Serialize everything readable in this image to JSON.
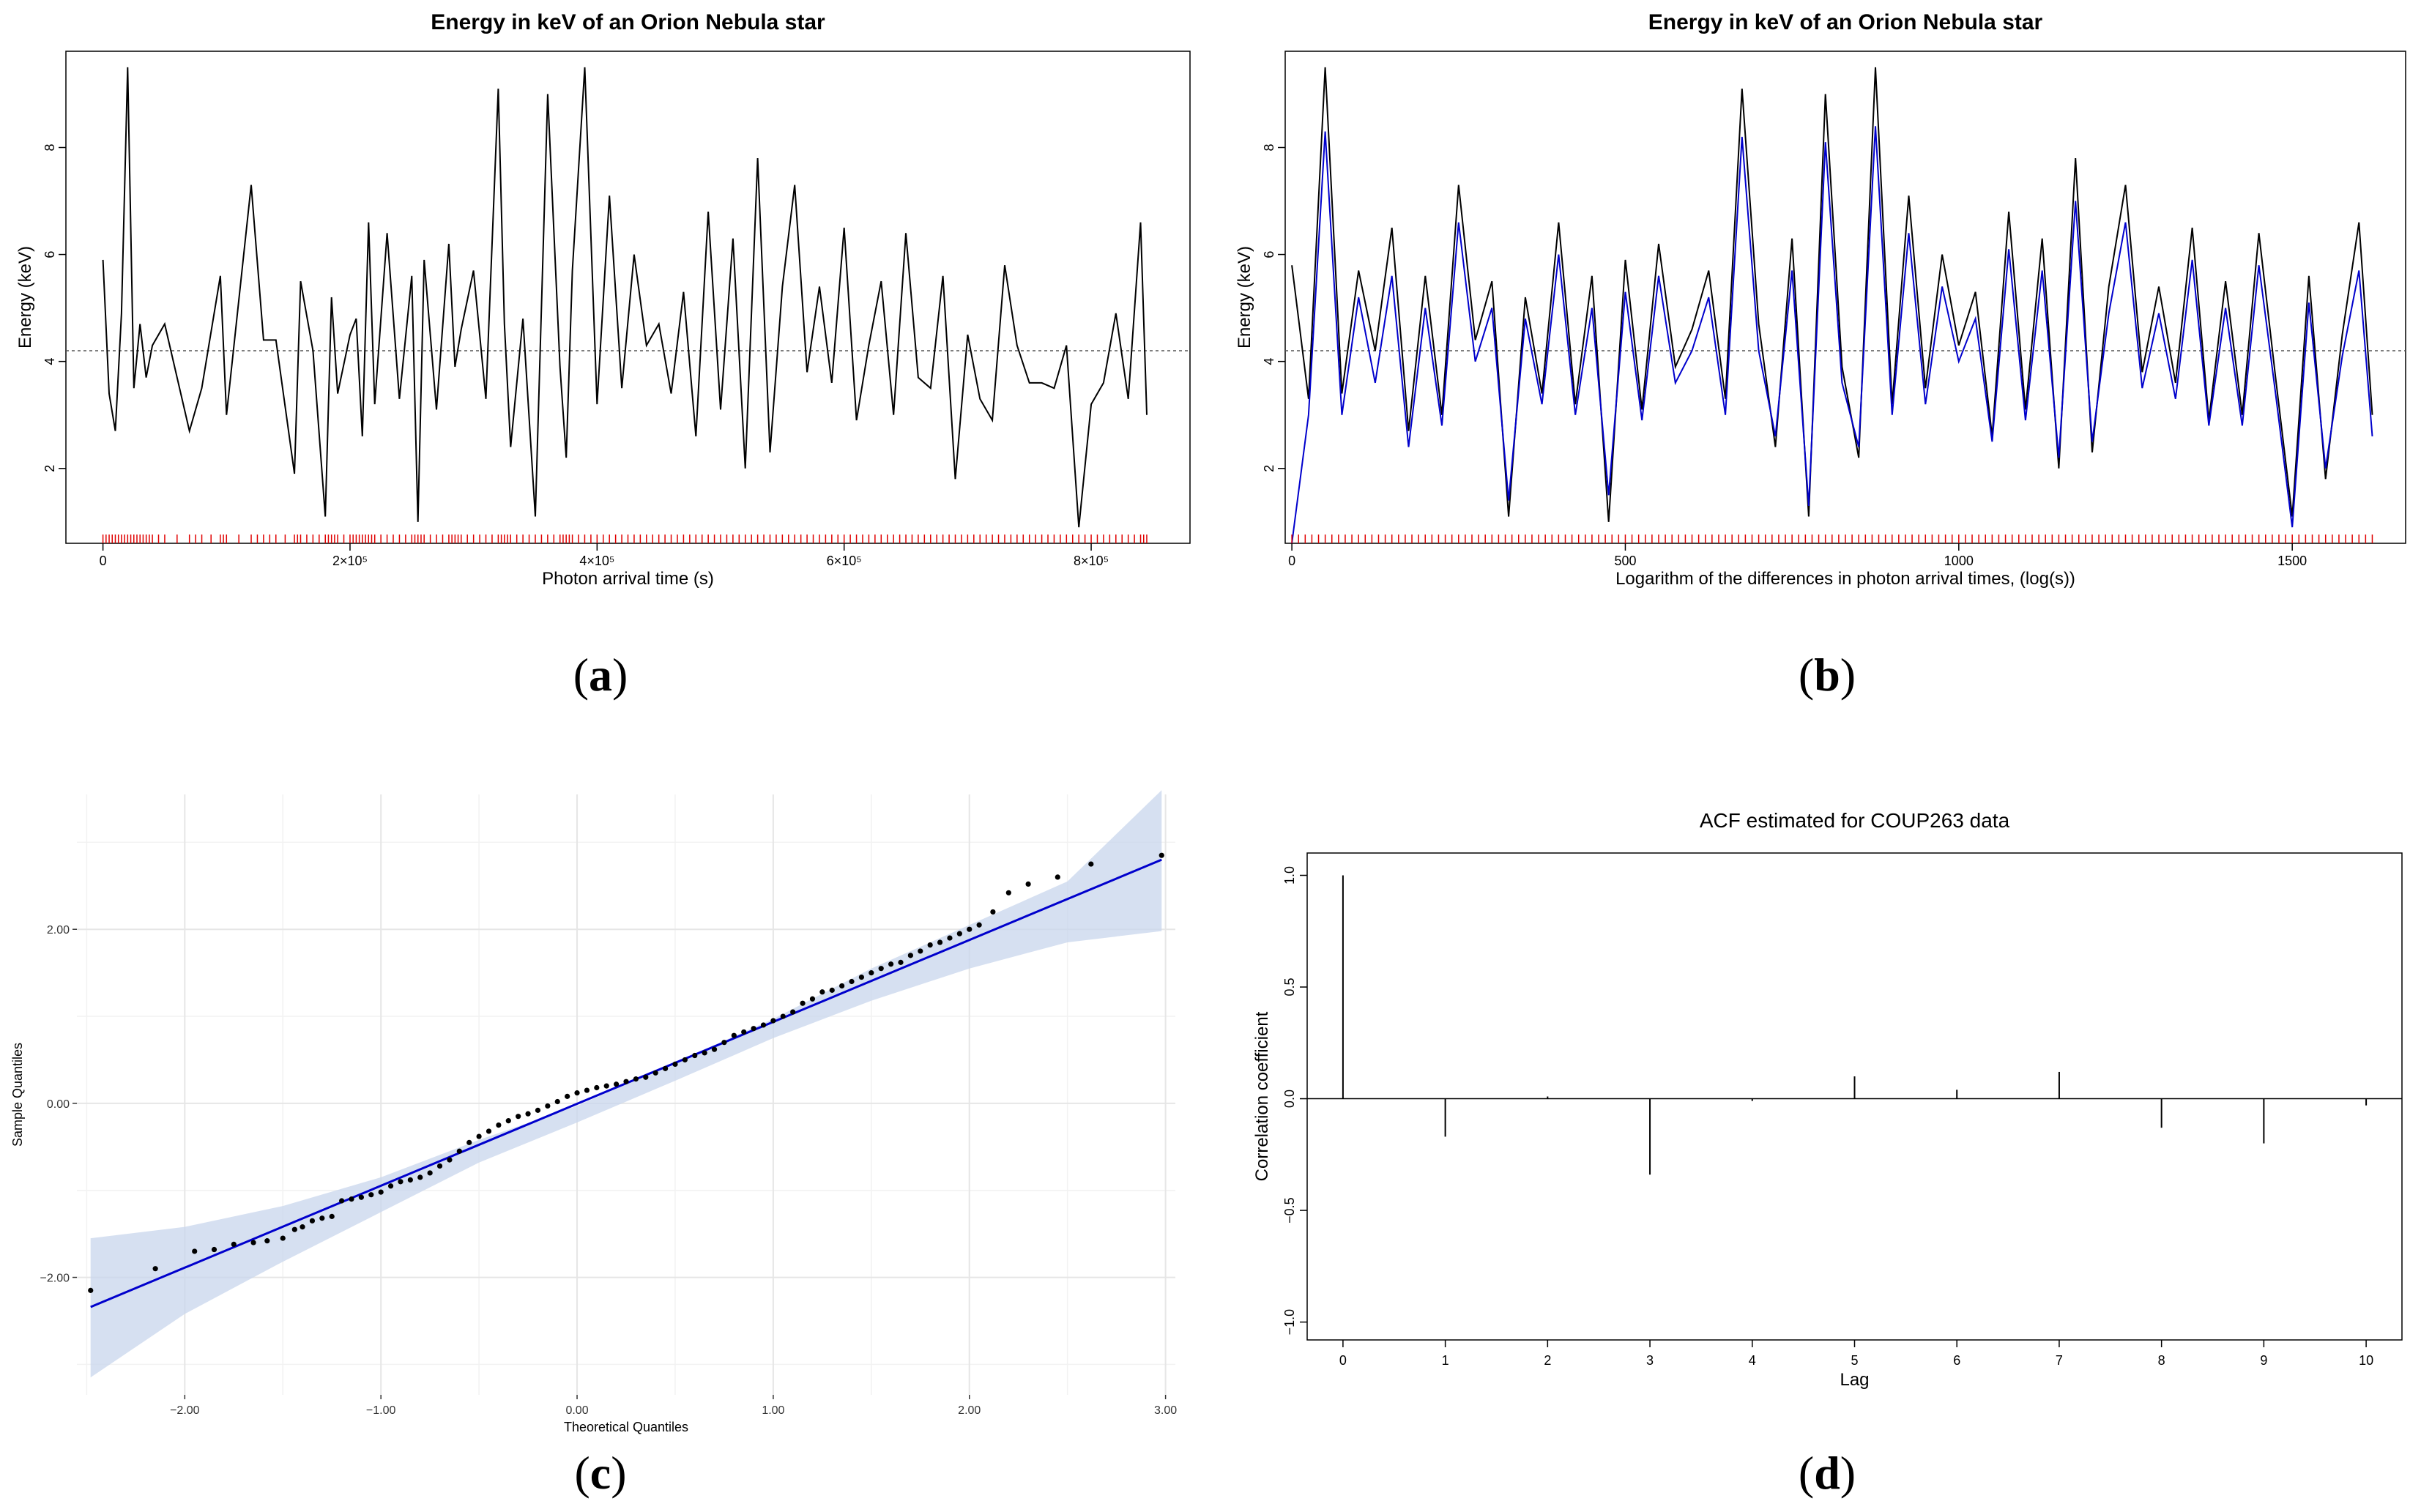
{
  "captions": {
    "a": "a",
    "b": "b",
    "c": "c",
    "d": "d"
  },
  "chart_data": [
    {
      "id": "a",
      "type": "line",
      "title": "Energy in keV of an Orion Nebula star",
      "xlabel": "Photon arrival time (s)",
      "ylabel": "Energy (keV)",
      "xlim": [
        -30000,
        880000
      ],
      "ylim": [
        0.6,
        9.8
      ],
      "yticks": [
        2,
        4,
        6,
        8
      ],
      "xticks": [
        {
          "v": 0,
          "label": "0"
        },
        {
          "v": 200000,
          "label": "2×10⁵"
        },
        {
          "v": 400000,
          "label": "4×10⁵"
        },
        {
          "v": 600000,
          "label": "6×10⁵"
        },
        {
          "v": 800000,
          "label": "8×10⁵"
        }
      ],
      "hline": 4.2,
      "series": [
        {
          "name": "energy",
          "color": "#000000",
          "x": [
            0,
            5000,
            10000,
            15000,
            20000,
            25000,
            30000,
            35000,
            40000,
            50000,
            70000,
            80000,
            95000,
            100000,
            120000,
            130000,
            140000,
            155000,
            160000,
            170000,
            180000,
            185000,
            190000,
            200000,
            205000,
            210000,
            215000,
            220000,
            230000,
            240000,
            250000,
            255000,
            260000,
            270000,
            280000,
            285000,
            290000,
            300000,
            310000,
            320000,
            325000,
            330000,
            340000,
            350000,
            360000,
            370000,
            375000,
            380000,
            390000,
            400000,
            410000,
            420000,
            430000,
            440000,
            450000,
            460000,
            470000,
            480000,
            490000,
            500000,
            510000,
            520000,
            530000,
            540000,
            550000,
            560000,
            570000,
            580000,
            590000,
            600000,
            610000,
            620000,
            630000,
            640000,
            650000,
            660000,
            670000,
            680000,
            690000,
            700000,
            710000,
            720000,
            730000,
            740000,
            750000,
            760000,
            770000,
            780000,
            790000,
            800000,
            810000,
            820000,
            830000,
            840000,
            845000
          ],
          "y": [
            5.9,
            3.4,
            2.7,
            4.9,
            9.5,
            3.5,
            4.7,
            3.7,
            4.3,
            4.7,
            2.7,
            3.5,
            5.6,
            3.0,
            7.3,
            4.4,
            4.4,
            1.9,
            5.5,
            4.2,
            1.1,
            5.2,
            3.4,
            4.5,
            4.8,
            2.6,
            6.6,
            3.2,
            6.4,
            3.3,
            5.6,
            1.0,
            5.9,
            3.1,
            6.2,
            3.9,
            4.6,
            5.7,
            3.3,
            9.1,
            4.7,
            2.4,
            4.8,
            1.1,
            9.0,
            3.9,
            2.2,
            5.7,
            9.5,
            3.2,
            7.1,
            3.5,
            6.0,
            4.3,
            4.7,
            3.4,
            5.3,
            2.6,
            6.8,
            3.1,
            6.3,
            2.0,
            7.8,
            2.3,
            5.4,
            7.3,
            3.8,
            5.4,
            3.6,
            6.5,
            2.9,
            4.3,
            5.5,
            3.0,
            6.4,
            3.7,
            3.5,
            5.6,
            1.8,
            4.5,
            3.3,
            2.9,
            5.8,
            4.3,
            3.6,
            3.6,
            3.5,
            4.3,
            0.9,
            3.2,
            3.6,
            4.9,
            3.3,
            6.6,
            3.0
          ]
        }
      ]
    },
    {
      "id": "b",
      "type": "line",
      "title": "Energy in keV of an Orion Nebula star",
      "xlabel": "Logarithm of the differences in photon arrival times, (log(s))",
      "ylabel": "Energy (keV)",
      "xlim": [
        -10,
        1670
      ],
      "ylim": [
        0.6,
        9.8
      ],
      "yticks": [
        2,
        4,
        6,
        8
      ],
      "xticks": [
        {
          "v": 0,
          "label": "0"
        },
        {
          "v": 500,
          "label": "500"
        },
        {
          "v": 1000,
          "label": "1000"
        },
        {
          "v": 1500,
          "label": "1500"
        }
      ],
      "hline": 4.2,
      "series": [
        {
          "name": "observed",
          "color": "#000000",
          "x": [
            0,
            25,
            50,
            75,
            100,
            125,
            150,
            175,
            200,
            225,
            250,
            275,
            300,
            325,
            350,
            375,
            400,
            425,
            450,
            475,
            500,
            525,
            550,
            575,
            600,
            625,
            650,
            675,
            700,
            725,
            750,
            775,
            800,
            825,
            850,
            875,
            900,
            925,
            950,
            975,
            1000,
            1025,
            1050,
            1075,
            1100,
            1125,
            1150,
            1175,
            1200,
            1225,
            1250,
            1275,
            1300,
            1325,
            1350,
            1375,
            1400,
            1425,
            1450,
            1475,
            1500,
            1525,
            1550,
            1575,
            1600,
            1620
          ],
          "y": [
            5.8,
            3.3,
            9.5,
            3.4,
            5.7,
            4.2,
            6.5,
            2.7,
            5.6,
            3.0,
            7.3,
            4.4,
            5.5,
            1.1,
            5.2,
            3.4,
            6.6,
            3.2,
            5.6,
            1.0,
            5.9,
            3.1,
            6.2,
            3.9,
            4.6,
            5.7,
            3.3,
            9.1,
            4.7,
            2.4,
            6.3,
            1.1,
            9.0,
            3.9,
            2.2,
            9.5,
            3.2,
            7.1,
            3.5,
            6.0,
            4.3,
            5.3,
            2.6,
            6.8,
            3.1,
            6.3,
            2.0,
            7.8,
            2.3,
            5.4,
            7.3,
            3.8,
            5.4,
            3.6,
            6.5,
            2.9,
            5.5,
            3.0,
            6.4,
            3.7,
            1.1,
            5.6,
            1.8,
            4.5,
            6.6,
            3.0
          ]
        },
        {
          "name": "fitted",
          "color": "#0000cc",
          "x": [
            0,
            25,
            50,
            75,
            100,
            125,
            150,
            175,
            200,
            225,
            250,
            275,
            300,
            325,
            350,
            375,
            400,
            425,
            450,
            475,
            500,
            525,
            550,
            575,
            600,
            625,
            650,
            675,
            700,
            725,
            750,
            775,
            800,
            825,
            850,
            875,
            900,
            925,
            950,
            975,
            1000,
            1025,
            1050,
            1075,
            1100,
            1125,
            1150,
            1175,
            1200,
            1225,
            1250,
            1275,
            1300,
            1325,
            1350,
            1375,
            1400,
            1425,
            1450,
            1475,
            1500,
            1525,
            1550,
            1575,
            1600,
            1620
          ],
          "y": [
            0.6,
            3.0,
            8.3,
            3.0,
            5.2,
            3.6,
            5.6,
            2.4,
            5.0,
            2.8,
            6.6,
            4.0,
            5.0,
            1.4,
            4.8,
            3.2,
            6.0,
            3.0,
            5.0,
            1.5,
            5.3,
            2.9,
            5.6,
            3.6,
            4.2,
            5.2,
            3.0,
            8.2,
            4.2,
            2.6,
            5.7,
            1.3,
            8.1,
            3.6,
            2.4,
            8.4,
            3.0,
            6.4,
            3.2,
            5.4,
            4.0,
            4.8,
            2.5,
            6.1,
            2.9,
            5.7,
            2.2,
            7.0,
            2.5,
            4.9,
            6.6,
            3.5,
            4.9,
            3.3,
            5.9,
            2.8,
            5.0,
            2.8,
            5.8,
            3.4,
            0.9,
            5.1,
            2.0,
            4.1,
            5.7,
            2.6
          ]
        }
      ]
    },
    {
      "id": "c",
      "type": "scatter",
      "title": "",
      "xlabel": "Theoretical Quantiles",
      "ylabel": "Sample Quantiles",
      "xlim": [
        -2.55,
        3.05
      ],
      "ylim": [
        -3.35,
        3.55
      ],
      "xticks": [
        -2,
        -1,
        0,
        1,
        2,
        3
      ],
      "xtick_labels": [
        "−2.00",
        "−1.00",
        "0.00",
        "1.00",
        "2.00",
        "3.00"
      ],
      "yticks": [
        -2,
        0,
        2
      ],
      "ytick_labels": [
        "−2.00",
        "0.00",
        "2.00"
      ],
      "fit_line": {
        "x": [
          -2.48,
          2.98
        ],
        "y": [
          -2.34,
          2.8
        ],
        "color": "#0000cc"
      },
      "band_color": "#c8d6ec",
      "band": {
        "x": [
          -2.48,
          -2.0,
          -1.5,
          -1.0,
          -0.5,
          0.0,
          0.5,
          1.0,
          1.5,
          2.0,
          2.5,
          2.98
        ],
        "upper": [
          -1.55,
          -1.42,
          -1.18,
          -0.85,
          -0.42,
          -0.03,
          0.47,
          0.97,
          1.55,
          2.05,
          2.55,
          3.6
        ],
        "lower": [
          -3.15,
          -2.42,
          -1.82,
          -1.25,
          -0.68,
          -0.22,
          0.26,
          0.75,
          1.18,
          1.55,
          1.85,
          1.98
        ]
      },
      "points": {
        "x": [
          -2.48,
          -2.15,
          -1.95,
          -1.85,
          -1.75,
          -1.65,
          -1.58,
          -1.5,
          -1.44,
          -1.4,
          -1.35,
          -1.3,
          -1.25,
          -1.2,
          -1.15,
          -1.1,
          -1.05,
          -1.0,
          -0.95,
          -0.9,
          -0.85,
          -0.8,
          -0.75,
          -0.7,
          -0.65,
          -0.6,
          -0.55,
          -0.5,
          -0.45,
          -0.4,
          -0.35,
          -0.3,
          -0.25,
          -0.2,
          -0.15,
          -0.1,
          -0.05,
          0.0,
          0.05,
          0.1,
          0.15,
          0.2,
          0.25,
          0.3,
          0.35,
          0.4,
          0.45,
          0.5,
          0.55,
          0.6,
          0.65,
          0.7,
          0.75,
          0.8,
          0.85,
          0.9,
          0.95,
          1.0,
          1.05,
          1.1,
          1.15,
          1.2,
          1.25,
          1.3,
          1.35,
          1.4,
          1.45,
          1.5,
          1.55,
          1.6,
          1.65,
          1.7,
          1.75,
          1.8,
          1.85,
          1.9,
          1.95,
          2.0,
          2.05,
          2.12,
          2.2,
          2.3,
          2.45,
          2.62,
          2.98
        ],
        "y": [
          -2.15,
          -1.9,
          -1.7,
          -1.68,
          -1.62,
          -1.6,
          -1.58,
          -1.55,
          -1.45,
          -1.42,
          -1.35,
          -1.32,
          -1.3,
          -1.12,
          -1.1,
          -1.08,
          -1.05,
          -1.02,
          -0.95,
          -0.9,
          -0.88,
          -0.85,
          -0.8,
          -0.72,
          -0.65,
          -0.55,
          -0.45,
          -0.38,
          -0.32,
          -0.25,
          -0.2,
          -0.15,
          -0.12,
          -0.08,
          -0.03,
          0.02,
          0.08,
          0.12,
          0.15,
          0.18,
          0.2,
          0.22,
          0.25,
          0.28,
          0.3,
          0.35,
          0.4,
          0.45,
          0.5,
          0.55,
          0.58,
          0.62,
          0.7,
          0.78,
          0.82,
          0.86,
          0.9,
          0.95,
          1.0,
          1.05,
          1.15,
          1.2,
          1.28,
          1.3,
          1.35,
          1.4,
          1.45,
          1.5,
          1.55,
          1.6,
          1.62,
          1.7,
          1.75,
          1.82,
          1.85,
          1.9,
          1.95,
          2.0,
          2.05,
          2.2,
          2.42,
          2.52,
          2.6,
          2.75,
          2.85
        ]
      }
    },
    {
      "id": "d",
      "type": "bar",
      "title": "ACF estimated for COUP263 data",
      "xlabel": "Lag",
      "ylabel": "Correlation coefficient",
      "xlim": [
        -0.35,
        10.35
      ],
      "ylim": [
        -1.08,
        1.1
      ],
      "yticks": [
        -1.0,
        -0.5,
        0.0,
        0.5,
        1.0
      ],
      "ytick_labels": [
        "−1.0",
        "−0.5",
        "0.0",
        "0.5",
        "1.0"
      ],
      "categories": [
        "0",
        "1",
        "2",
        "3",
        "4",
        "5",
        "6",
        "7",
        "8",
        "9",
        "10"
      ],
      "values": [
        1.0,
        -0.17,
        0.01,
        -0.34,
        -0.01,
        0.1,
        0.04,
        0.12,
        -0.13,
        -0.2,
        -0.03
      ]
    }
  ]
}
